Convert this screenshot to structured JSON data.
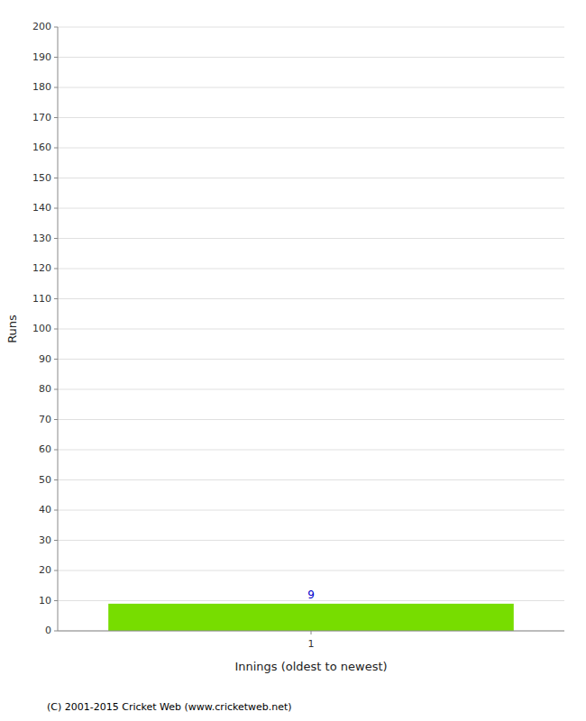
{
  "chart_data": {
    "type": "bar",
    "categories": [
      "1"
    ],
    "values": [
      9
    ],
    "color": "#77dd00",
    "x_label": "Innings (oldest to newest)",
    "y_label": "Runs",
    "ylim": [
      0,
      200
    ],
    "yticks": [
      0,
      10,
      20,
      30,
      40,
      50,
      60,
      70,
      80,
      90,
      100,
      110,
      120,
      130,
      140,
      150,
      160,
      170,
      180,
      190,
      200
    ],
    "grid": true,
    "data_labels": true,
    "annotations": [
      "(C) 2001-2015 Cricket Web (www.cricketweb.net)"
    ]
  }
}
